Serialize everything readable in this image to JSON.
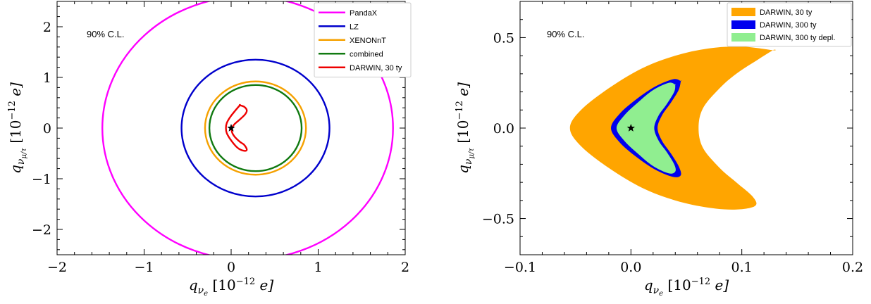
{
  "chart_data": [
    {
      "type": "line",
      "title": "",
      "annotation": "90% C.L.",
      "xlim": [
        -2,
        2
      ],
      "ylim": [
        -2.5,
        2.5
      ],
      "xticks": [
        -2,
        -1,
        0,
        1,
        2
      ],
      "yticks": [
        -2,
        -1,
        0,
        1,
        2
      ],
      "xtick_labels": [
        "−2",
        "−1",
        "0",
        "1",
        "2"
      ],
      "ytick_labels": [
        "−2",
        "−1",
        "0",
        "1",
        "2"
      ],
      "xlabel": {
        "base": "q",
        "sub": "ν",
        "subsub": "e",
        "unit": " [10",
        "exp": "−12",
        "unit_end": " e]"
      },
      "ylabel": {
        "base": "q",
        "sub": "ν",
        "subsub": "μ/τ",
        "unit": " [10",
        "exp": "−12",
        "unit_end": " e]"
      },
      "legend_position": "top-right",
      "best_fit": [
        0,
        0
      ],
      "series": [
        {
          "name": "PandaX",
          "color": "#ff00ff",
          "shape": "ellipse",
          "center": [
            0.19,
            0.0
          ],
          "radius": [
            1.67,
            2.6
          ]
        },
        {
          "name": "LZ",
          "color": "#0000cc",
          "shape": "ellipse",
          "center": [
            0.28,
            0.0
          ],
          "radius": [
            0.85,
            1.35
          ]
        },
        {
          "name": "XENONnT",
          "color": "#f5a100",
          "shape": "ellipse",
          "center": [
            0.28,
            0.0
          ],
          "radius": [
            0.58,
            0.92
          ]
        },
        {
          "name": "combined",
          "color": "#117a11",
          "shape": "ellipse",
          "center": [
            0.28,
            0.0
          ],
          "radius": [
            0.53,
            0.85
          ]
        },
        {
          "name": "DARWIN, 30 ty",
          "color": "#ee0000",
          "shape": "crescent",
          "x": [
            0.1,
            0.15,
            0.18,
            0.16,
            0.1,
            0.04,
            0.01,
            0.01,
            0.04,
            0.1,
            0.15,
            0.18,
            0.16,
            0.1,
            0.05,
            -0.01,
            -0.05,
            -0.06,
            -0.05,
            -0.01,
            0.05,
            0.1
          ],
          "y": [
            0.45,
            0.42,
            0.35,
            0.27,
            0.17,
            0.08,
            0.0,
            -0.08,
            -0.17,
            -0.27,
            -0.33,
            -0.42,
            -0.45,
            -0.42,
            -0.35,
            -0.22,
            -0.1,
            0.0,
            0.1,
            0.22,
            0.35,
            0.45
          ]
        }
      ]
    },
    {
      "type": "area",
      "title": "",
      "annotation": "90% C.L.",
      "xlim": [
        -0.1,
        0.2
      ],
      "ylim": [
        -0.7,
        0.7
      ],
      "xticks": [
        -0.1,
        0.0,
        0.1,
        0.2
      ],
      "yticks": [
        -0.5,
        0.0,
        0.5
      ],
      "xtick_labels": [
        "−0.1",
        "0.0",
        "0.1",
        "0.2"
      ],
      "ytick_labels": [
        "−0.5",
        "0.0",
        "0.5"
      ],
      "xlabel": {
        "base": "q",
        "sub": "ν",
        "subsub": "e",
        "unit": " [10",
        "exp": "−12",
        "unit_end": " e]"
      },
      "ylabel": {
        "base": "q",
        "sub": "ν",
        "subsub": "μ/τ",
        "unit": " [10",
        "exp": "−12",
        "unit_end": " e]"
      },
      "legend_position": "top-right",
      "best_fit": [
        0,
        0
      ],
      "series": [
        {
          "name": "DARWIN, 30 ty",
          "color": "#ffa500",
          "x": [
            0.128,
            0.115,
            0.095,
            0.08,
            0.065,
            0.061,
            0.065,
            0.08,
            0.095,
            0.11,
            0.112,
            0.095,
            0.07,
            0.04,
            0.01,
            -0.02,
            -0.045,
            -0.055,
            -0.045,
            -0.02,
            0.01,
            0.04,
            0.07,
            0.1,
            0.128
          ],
          "y": [
            0.43,
            0.38,
            0.3,
            0.22,
            0.11,
            0.0,
            -0.11,
            -0.22,
            -0.3,
            -0.38,
            -0.43,
            -0.45,
            -0.44,
            -0.4,
            -0.33,
            -0.22,
            -0.1,
            0.0,
            0.1,
            0.22,
            0.33,
            0.4,
            0.44,
            0.45,
            0.43
          ]
        },
        {
          "name": "DARWIN, 300 ty",
          "color": "#0000ee",
          "x": [
            0.045,
            0.043,
            0.036,
            0.028,
            0.024,
            0.028,
            0.036,
            0.043,
            0.045,
            0.038,
            0.022,
            0.005,
            -0.01,
            -0.018,
            -0.01,
            0.005,
            0.022,
            0.038,
            0.045
          ],
          "y": [
            0.26,
            0.21,
            0.14,
            0.07,
            0.0,
            -0.07,
            -0.14,
            -0.21,
            -0.26,
            -0.27,
            -0.23,
            -0.16,
            -0.08,
            0.0,
            0.08,
            0.16,
            0.23,
            0.27,
            0.26
          ]
        },
        {
          "name": "DARWIN, 300 ty depl.",
          "color": "#90ee90",
          "x": [
            0.04,
            0.039,
            0.032,
            0.025,
            0.021,
            0.025,
            0.032,
            0.039,
            0.04,
            0.034,
            0.02,
            0.006,
            -0.006,
            -0.013,
            -0.006,
            0.006,
            0.02,
            0.034,
            0.04
          ],
          "y": [
            0.24,
            0.2,
            0.13,
            0.07,
            0.0,
            -0.07,
            -0.13,
            -0.2,
            -0.24,
            -0.25,
            -0.21,
            -0.14,
            -0.07,
            0.0,
            0.07,
            0.14,
            0.21,
            0.25,
            0.24
          ]
        }
      ]
    }
  ],
  "colors": {
    "best_fit_marker": "#000000",
    "axes": "#000000"
  },
  "icons": {
    "best_fit_marker": "star-icon"
  }
}
